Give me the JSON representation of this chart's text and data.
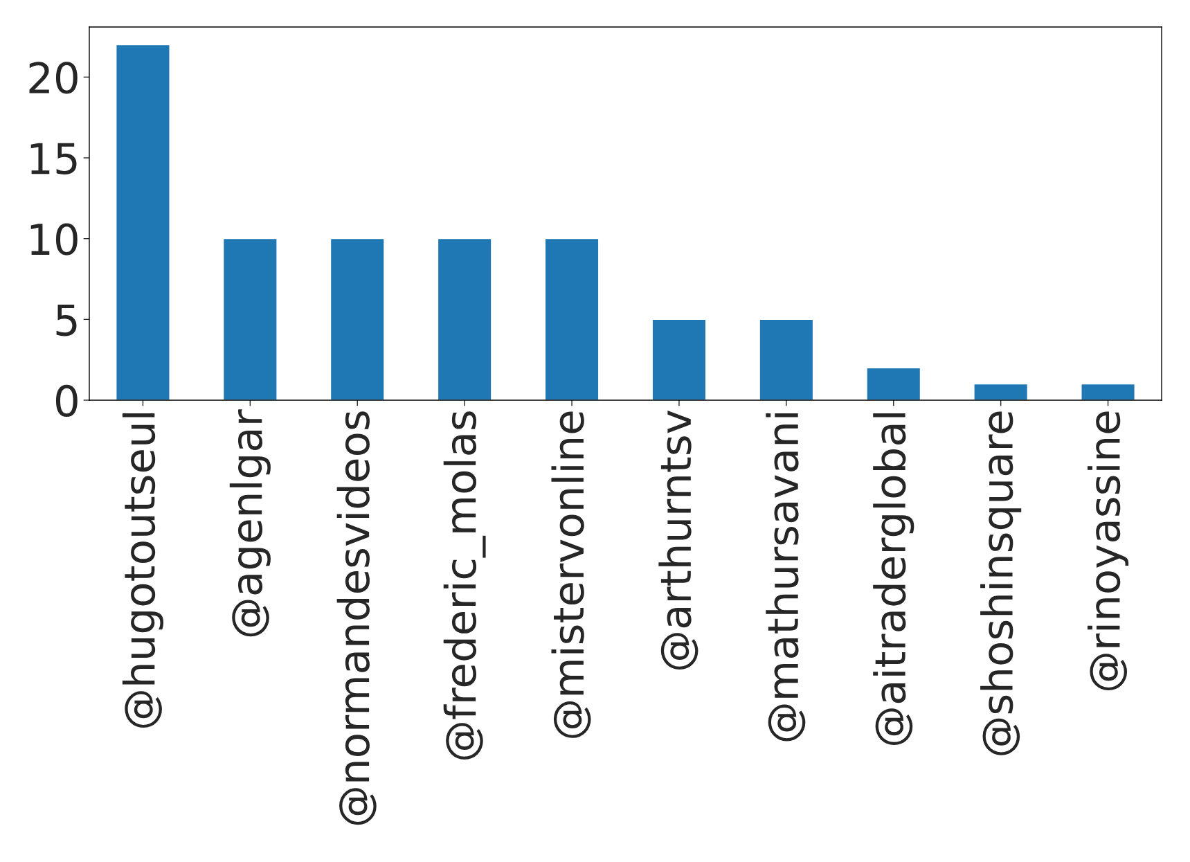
{
  "chart_data": {
    "type": "bar",
    "categories": [
      "@hugotoutseul",
      "@agenlgar",
      "@normandesvideos",
      "@frederic_molas",
      "@mistervonline",
      "@arthurntsv",
      "@mathursavani",
      "@aitraderglobal",
      "@shoshinsquare",
      "@rinoyassine"
    ],
    "values": [
      22,
      10,
      10,
      10,
      10,
      5,
      5,
      2,
      1,
      1
    ],
    "color": "#1f77b4",
    "ylim": [
      0,
      23.1
    ],
    "yticks": [
      0,
      5,
      10,
      15,
      20
    ],
    "grid": false,
    "legend": false
  }
}
